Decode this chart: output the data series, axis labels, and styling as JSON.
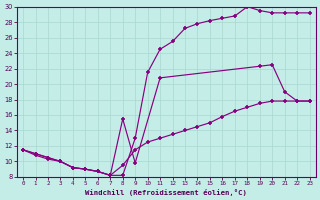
{
  "xlabel": "Windchill (Refroidissement éolien,°C)",
  "xlim": [
    0,
    23
  ],
  "ylim": [
    8,
    30
  ],
  "xticks": [
    0,
    1,
    2,
    3,
    4,
    5,
    6,
    7,
    8,
    9,
    10,
    11,
    12,
    13,
    14,
    15,
    16,
    17,
    18,
    19,
    20,
    21,
    22,
    23
  ],
  "yticks": [
    8,
    10,
    12,
    14,
    16,
    18,
    20,
    22,
    24,
    26,
    28,
    30
  ],
  "bg_color": "#c5ede8",
  "line_color": "#880080",
  "grid_color": "#a8d8d0",
  "line1_x": [
    0,
    1,
    2,
    3,
    4,
    5,
    6,
    7,
    8,
    9,
    10,
    11,
    12,
    13,
    14,
    15,
    16,
    17,
    18,
    19,
    20,
    21,
    22,
    23
  ],
  "line1_y": [
    11.5,
    11.0,
    10.5,
    10.0,
    9.2,
    9.0,
    8.7,
    8.2,
    9.5,
    11.5,
    12.5,
    13.0,
    13.5,
    14.0,
    14.5,
    15.0,
    15.8,
    16.5,
    17.0,
    17.5,
    17.8,
    17.8,
    17.8,
    17.8
  ],
  "line2_x": [
    0,
    1,
    2,
    3,
    4,
    5,
    6,
    7,
    8,
    9,
    10,
    11,
    12,
    13,
    14,
    15,
    16,
    17,
    18,
    19,
    20,
    21,
    22,
    23
  ],
  "line2_y": [
    11.5,
    11.0,
    10.5,
    10.0,
    9.2,
    9.0,
    8.7,
    8.2,
    8.2,
    13.0,
    21.5,
    24.5,
    25.5,
    27.2,
    27.8,
    28.2,
    28.5,
    28.8,
    30.0,
    29.5,
    29.2,
    29.2,
    29.2,
    29.2
  ],
  "line3_x": [
    0,
    1,
    2,
    3,
    4,
    5,
    6,
    7,
    8,
    9,
    11,
    19,
    20,
    21,
    22,
    23
  ],
  "line3_y": [
    11.5,
    10.8,
    10.3,
    10.0,
    9.2,
    9.0,
    8.7,
    8.2,
    15.5,
    9.8,
    20.8,
    22.3,
    22.5,
    19.0,
    17.8,
    17.8
  ]
}
